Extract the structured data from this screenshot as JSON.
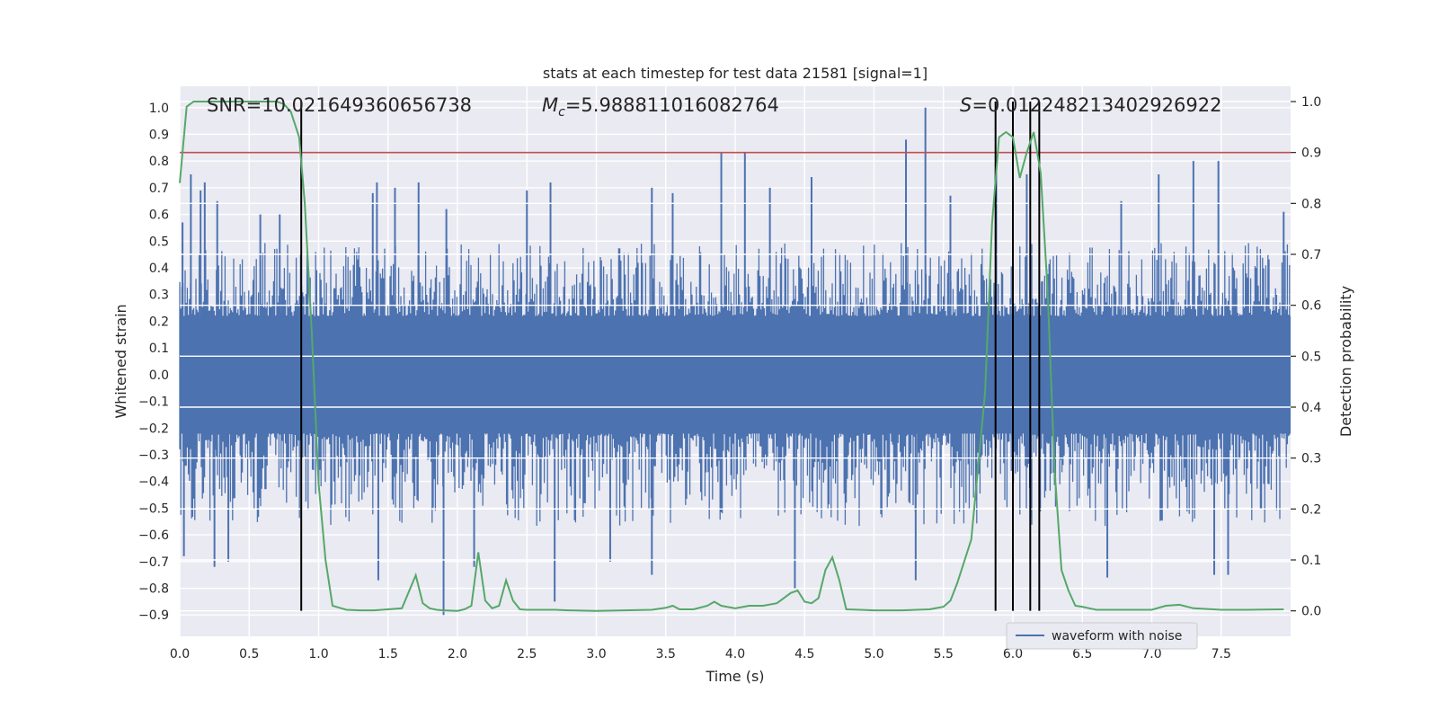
{
  "chart_data": {
    "type": "line",
    "title": "stats at each timestep for test data 21581 [signal=1]",
    "xlabel": "Time (s)",
    "ylabel": "Whitened strain",
    "ylabel_right": "Detection probability",
    "xlim": [
      0.0,
      8.0
    ],
    "ylim": [
      -0.98,
      1.08
    ],
    "ylim_right": [
      -0.05,
      1.03
    ],
    "x_ticks": [
      0.0,
      0.5,
      1.0,
      1.5,
      2.0,
      2.5,
      3.0,
      3.5,
      4.0,
      4.5,
      5.0,
      5.5,
      6.0,
      6.5,
      7.0,
      7.5
    ],
    "x_tick_labels": [
      "0.0",
      "0.5",
      "1.0",
      "1.5",
      "2.0",
      "2.5",
      "3.0",
      "3.5",
      "4.0",
      "4.5",
      "5.0",
      "5.5",
      "6.0",
      "6.5",
      "7.0",
      "7.5"
    ],
    "y_ticks": [
      1.0,
      0.9,
      0.8,
      0.7,
      0.6,
      0.5,
      0.4,
      0.3,
      0.2,
      0.1,
      0.0,
      -0.1,
      -0.2,
      -0.3,
      -0.4,
      -0.5,
      -0.6,
      -0.7,
      -0.8,
      -0.9
    ],
    "y_tick_labels": [
      "1.0",
      "0.9",
      "0.8",
      "0.7",
      "0.6",
      "0.5",
      "0.4",
      "0.3",
      "0.2",
      "0.1",
      "0.0",
      "−0.1",
      "−0.2",
      "−0.3",
      "−0.4",
      "−0.5",
      "−0.6",
      "−0.7",
      "−0.8",
      "−0.9"
    ],
    "y_ticks_right": [
      1.0,
      0.9,
      0.8,
      0.7,
      0.6,
      0.5,
      0.4,
      0.3,
      0.2,
      0.1,
      0.0
    ],
    "y_tick_labels_right": [
      "1.0",
      "0.9",
      "0.8",
      "0.7",
      "0.6",
      "0.5",
      "0.4",
      "0.3",
      "0.2",
      "0.1",
      "0.0"
    ],
    "annotations": {
      "snr": "SNR=10.021649360656738",
      "mc_symbol": "M",
      "mc_subscript": "c",
      "mc_value": "=5.988811016082764",
      "s_symbol": "S",
      "s_value": "=0.012248213402926922"
    },
    "threshold": 0.9,
    "threshold_color": "#c44e52",
    "marker_lines_x": [
      0.875,
      5.875,
      6.0,
      6.125,
      6.19
    ],
    "series": [
      {
        "name": "waveform with noise",
        "color": "#4c72b0",
        "axis": "left",
        "envelope": {
          "base_upper": 0.22,
          "base_lower": -0.22,
          "typical_peak_upper": 0.48,
          "typical_peak_lower": -0.55,
          "spikes_upper": [
            {
              "x": 0.02,
              "y": 0.57
            },
            {
              "x": 0.08,
              "y": 0.75
            },
            {
              "x": 0.15,
              "y": 0.69
            },
            {
              "x": 0.18,
              "y": 0.72
            },
            {
              "x": 0.27,
              "y": 0.65
            },
            {
              "x": 0.58,
              "y": 0.6
            },
            {
              "x": 0.72,
              "y": 0.6
            },
            {
              "x": 1.39,
              "y": 0.68
            },
            {
              "x": 1.42,
              "y": 0.72
            },
            {
              "x": 1.55,
              "y": 0.7
            },
            {
              "x": 1.72,
              "y": 0.72
            },
            {
              "x": 1.92,
              "y": 0.62
            },
            {
              "x": 2.5,
              "y": 0.69
            },
            {
              "x": 2.67,
              "y": 0.72
            },
            {
              "x": 3.4,
              "y": 0.7
            },
            {
              "x": 3.55,
              "y": 0.68
            },
            {
              "x": 3.9,
              "y": 0.83
            },
            {
              "x": 4.07,
              "y": 0.83
            },
            {
              "x": 4.25,
              "y": 0.7
            },
            {
              "x": 4.55,
              "y": 0.74
            },
            {
              "x": 5.23,
              "y": 0.88
            },
            {
              "x": 5.37,
              "y": 1.0
            },
            {
              "x": 5.55,
              "y": 0.67
            },
            {
              "x": 5.88,
              "y": 0.8
            },
            {
              "x": 6.1,
              "y": 0.75
            },
            {
              "x": 6.78,
              "y": 0.65
            },
            {
              "x": 7.05,
              "y": 0.75
            },
            {
              "x": 7.3,
              "y": 0.8
            },
            {
              "x": 7.48,
              "y": 0.8
            },
            {
              "x": 7.95,
              "y": 0.61
            }
          ],
          "spikes_lower": [
            {
              "x": 0.03,
              "y": -0.68
            },
            {
              "x": 0.25,
              "y": -0.72
            },
            {
              "x": 0.35,
              "y": -0.7
            },
            {
              "x": 1.43,
              "y": -0.77
            },
            {
              "x": 1.9,
              "y": -0.9
            },
            {
              "x": 2.12,
              "y": -0.72
            },
            {
              "x": 2.7,
              "y": -0.85
            },
            {
              "x": 3.1,
              "y": -0.7
            },
            {
              "x": 3.4,
              "y": -0.75
            },
            {
              "x": 4.43,
              "y": -0.8
            },
            {
              "x": 5.3,
              "y": -0.77
            },
            {
              "x": 6.68,
              "y": -0.76
            },
            {
              "x": 7.45,
              "y": -0.75
            },
            {
              "x": 7.55,
              "y": -0.75
            }
          ]
        }
      },
      {
        "name": "detection probability",
        "color": "#55a868",
        "axis": "right",
        "x": [
          0.0,
          0.05,
          0.1,
          0.2,
          0.3,
          0.4,
          0.5,
          0.6,
          0.7,
          0.75,
          0.8,
          0.86,
          0.9,
          0.95,
          1.0,
          1.05,
          1.1,
          1.2,
          1.3,
          1.4,
          1.5,
          1.6,
          1.7,
          1.75,
          1.8,
          1.85,
          1.9,
          2.0,
          2.05,
          2.1,
          2.15,
          2.2,
          2.25,
          2.3,
          2.35,
          2.4,
          2.45,
          2.5,
          2.55,
          2.6,
          2.7,
          2.8,
          3.0,
          3.2,
          3.4,
          3.5,
          3.55,
          3.6,
          3.7,
          3.8,
          3.85,
          3.9,
          4.0,
          4.1,
          4.2,
          4.3,
          4.4,
          4.45,
          4.5,
          4.55,
          4.6,
          4.65,
          4.7,
          4.75,
          4.8,
          4.9,
          5.0,
          5.2,
          5.4,
          5.5,
          5.55,
          5.6,
          5.7,
          5.8,
          5.85,
          5.9,
          5.95,
          6.0,
          6.05,
          6.1,
          6.15,
          6.2,
          6.25,
          6.3,
          6.35,
          6.4,
          6.45,
          6.5,
          6.55,
          6.6,
          6.7,
          6.8,
          7.0,
          7.1,
          7.2,
          7.3,
          7.5,
          7.7,
          7.95
        ],
        "y": [
          0.84,
          0.99,
          1.0,
          1.0,
          1.0,
          1.0,
          1.0,
          1.0,
          1.0,
          0.995,
          0.98,
          0.93,
          0.8,
          0.55,
          0.25,
          0.1,
          0.01,
          0.002,
          0.001,
          0.001,
          0.003,
          0.005,
          0.07,
          0.015,
          0.005,
          0.002,
          0.001,
          0.0,
          0.003,
          0.01,
          0.115,
          0.02,
          0.005,
          0.01,
          0.06,
          0.02,
          0.003,
          0.002,
          0.002,
          0.002,
          0.002,
          0.001,
          0.0,
          0.001,
          0.002,
          0.006,
          0.01,
          0.003,
          0.003,
          0.01,
          0.018,
          0.01,
          0.005,
          0.01,
          0.01,
          0.015,
          0.035,
          0.04,
          0.018,
          0.015,
          0.025,
          0.08,
          0.105,
          0.06,
          0.003,
          0.002,
          0.001,
          0.001,
          0.003,
          0.008,
          0.02,
          0.055,
          0.14,
          0.43,
          0.76,
          0.93,
          0.94,
          0.93,
          0.85,
          0.9,
          0.94,
          0.86,
          0.63,
          0.28,
          0.08,
          0.04,
          0.01,
          0.008,
          0.005,
          0.002,
          0.002,
          0.002,
          0.002,
          0.01,
          0.012,
          0.005,
          0.002,
          0.002,
          0.003
        ]
      }
    ],
    "legend": {
      "location": "lower-right",
      "entries": [
        "waveform with noise"
      ]
    },
    "grid": true,
    "colors": {
      "plot_background": "#eaeaf2",
      "grid": "#ffffff",
      "marker_line": "#000000"
    }
  }
}
